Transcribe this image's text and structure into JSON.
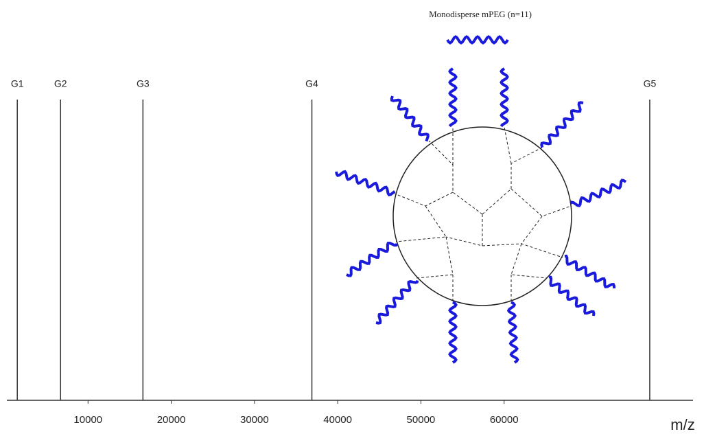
{
  "chart_data": {
    "type": "stem",
    "categories": [
      "G1",
      "G2",
      "G3",
      "G4",
      "G5"
    ],
    "x": [
      1500,
      6700,
      16600,
      36900,
      77500
    ],
    "values": [
      100,
      100,
      100,
      100,
      100
    ],
    "color": "#333333",
    "xlim": [
      0,
      82700
    ],
    "xticks": [
      10000,
      20000,
      30000,
      40000,
      50000,
      60000
    ],
    "ylim": [
      0,
      100
    ],
    "x_label": "m/z",
    "annotation": "Monodisperse mPEG (n=11)"
  }
}
